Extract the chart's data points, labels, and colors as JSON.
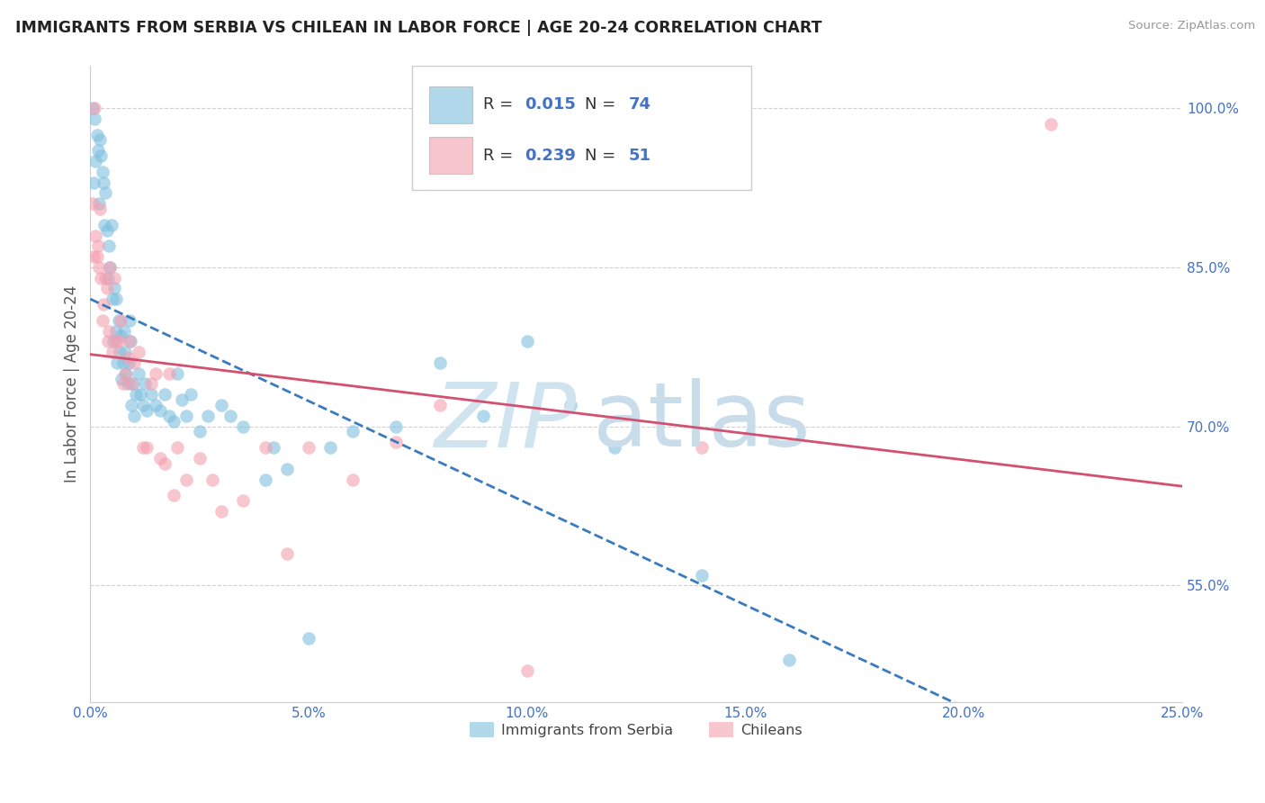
{
  "title": "IMMIGRANTS FROM SERBIA VS CHILEAN IN LABOR FORCE | AGE 20-24 CORRELATION CHART",
  "source": "Source: ZipAtlas.com",
  "ylabel": "In Labor Force | Age 20-24",
  "xlabel_ticks": [
    "0.0%",
    "5.0%",
    "10.0%",
    "15.0%",
    "20.0%",
    "25.0%"
  ],
  "xlabel_vals": [
    0.0,
    5.0,
    10.0,
    15.0,
    20.0,
    25.0
  ],
  "ytick_labels": [
    "55.0%",
    "70.0%",
    "85.0%",
    "100.0%"
  ],
  "ytick_vals": [
    55.0,
    70.0,
    85.0,
    100.0
  ],
  "xlim": [
    0.0,
    25.0
  ],
  "ylim": [
    44.0,
    104.0
  ],
  "serbia_color": "#7fbfdf",
  "chilean_color": "#f4a0b0",
  "serbia_line_color": "#3a7abf",
  "chilean_line_color": "#d45070",
  "serbia_R": 0.015,
  "serbia_N": 74,
  "chilean_R": 0.239,
  "chilean_N": 51,
  "serbia_x": [
    0.05,
    0.08,
    0.1,
    0.12,
    0.15,
    0.18,
    0.2,
    0.22,
    0.25,
    0.28,
    0.3,
    0.32,
    0.35,
    0.38,
    0.4,
    0.42,
    0.45,
    0.48,
    0.5,
    0.52,
    0.55,
    0.58,
    0.6,
    0.62,
    0.65,
    0.68,
    0.7,
    0.72,
    0.75,
    0.78,
    0.8,
    0.82,
    0.85,
    0.88,
    0.9,
    0.92,
    0.95,
    0.98,
    1.0,
    1.05,
    1.1,
    1.15,
    1.2,
    1.25,
    1.3,
    1.4,
    1.5,
    1.6,
    1.7,
    1.8,
    1.9,
    2.0,
    2.1,
    2.2,
    2.3,
    2.5,
    2.7,
    3.0,
    3.2,
    3.5,
    4.0,
    4.2,
    4.5,
    5.0,
    5.5,
    6.0,
    7.0,
    8.0,
    9.0,
    10.0,
    11.0,
    12.0,
    14.0,
    16.0
  ],
  "serbia_y": [
    100.0,
    93.0,
    99.0,
    95.0,
    97.5,
    96.0,
    91.0,
    97.0,
    95.5,
    94.0,
    93.0,
    89.0,
    92.0,
    88.5,
    84.0,
    87.0,
    85.0,
    89.0,
    82.0,
    78.0,
    83.0,
    79.0,
    82.0,
    76.0,
    80.0,
    77.0,
    78.5,
    74.5,
    76.0,
    79.0,
    77.0,
    75.0,
    74.0,
    76.0,
    80.0,
    78.0,
    72.0,
    74.0,
    71.0,
    73.0,
    75.0,
    73.0,
    72.0,
    74.0,
    71.5,
    73.0,
    72.0,
    71.5,
    73.0,
    71.0,
    70.5,
    75.0,
    72.5,
    71.0,
    73.0,
    69.5,
    71.0,
    72.0,
    71.0,
    70.0,
    65.0,
    68.0,
    66.0,
    50.0,
    68.0,
    69.5,
    70.0,
    76.0,
    71.0,
    78.0,
    72.0,
    68.0,
    56.0,
    48.0
  ],
  "chilean_x": [
    0.05,
    0.08,
    0.1,
    0.12,
    0.15,
    0.18,
    0.2,
    0.22,
    0.25,
    0.28,
    0.3,
    0.35,
    0.38,
    0.4,
    0.42,
    0.45,
    0.5,
    0.55,
    0.6,
    0.65,
    0.7,
    0.75,
    0.8,
    0.85,
    0.9,
    0.95,
    1.0,
    1.1,
    1.2,
    1.3,
    1.4,
    1.5,
    1.6,
    1.7,
    1.8,
    1.9,
    2.0,
    2.2,
    2.5,
    2.8,
    3.0,
    3.5,
    4.0,
    4.5,
    5.0,
    6.0,
    7.0,
    8.0,
    10.0,
    14.0,
    22.0
  ],
  "chilean_y": [
    91.0,
    86.0,
    100.0,
    88.0,
    86.0,
    87.0,
    85.0,
    90.5,
    84.0,
    80.0,
    81.5,
    84.0,
    83.0,
    78.0,
    79.0,
    85.0,
    77.0,
    84.0,
    78.0,
    78.0,
    80.0,
    74.0,
    75.0,
    76.5,
    78.0,
    74.0,
    76.0,
    77.0,
    68.0,
    68.0,
    74.0,
    75.0,
    67.0,
    66.5,
    75.0,
    63.5,
    68.0,
    65.0,
    67.0,
    65.0,
    62.0,
    63.0,
    68.0,
    58.0,
    68.0,
    65.0,
    68.5,
    72.0,
    47.0,
    68.0,
    98.5
  ]
}
